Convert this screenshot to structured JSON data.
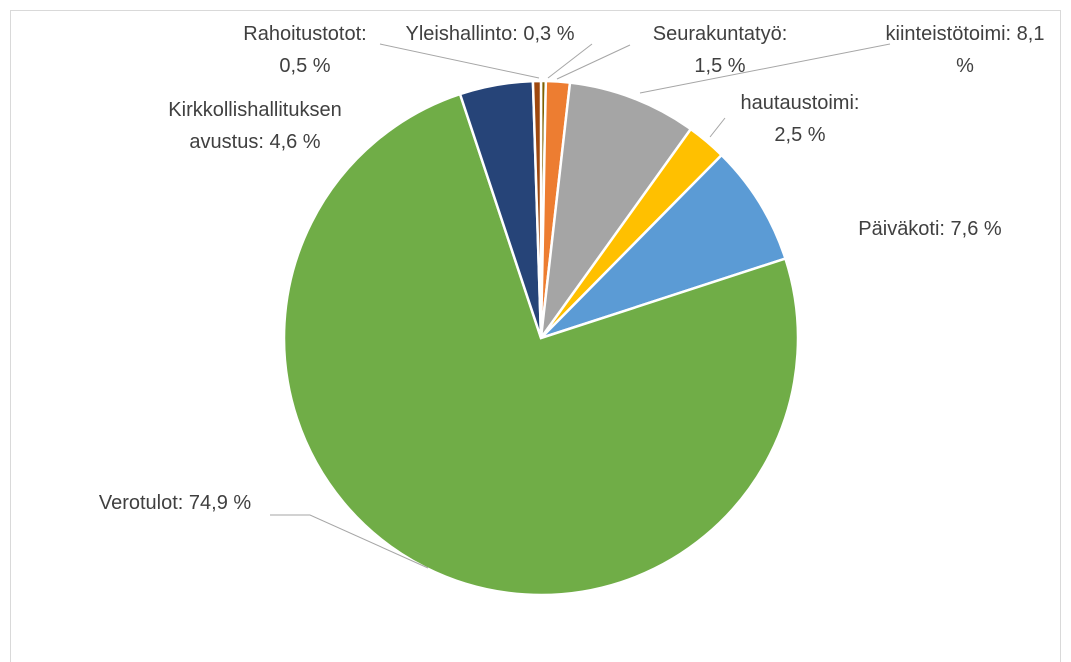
{
  "chart_data": {
    "type": "pie",
    "categories": [
      "Yleishallinto",
      "Seurakuntatyö",
      "kiinteistötoimi",
      "hautaustoimi",
      "Päiväkoti",
      "Verotulot",
      "Kirkkollishallituksen avustus",
      "Rahoitustotot"
    ],
    "values": [
      0.3,
      1.5,
      8.1,
      2.5,
      7.6,
      74.9,
      4.6,
      0.5
    ],
    "value_labels": [
      "Yleishallinto: 0,3 %",
      "Seurakuntatyö: 1,5 %",
      "kiinteistötoimi: 8,1 %",
      "hautaustoimi: 2,5 %",
      "Päiväkoti: 7,6 %",
      "Verotulot: 74,9 %",
      "Kirkkollishallituksen avustus: 4,6 %",
      "Rahoitustotot: 0,5 %"
    ],
    "colors": [
      "#7f6000",
      "#ed7d31",
      "#a5a5a5",
      "#ffc000",
      "#5b9bd5",
      "#70ad47",
      "#264478",
      "#9e480e"
    ]
  }
}
